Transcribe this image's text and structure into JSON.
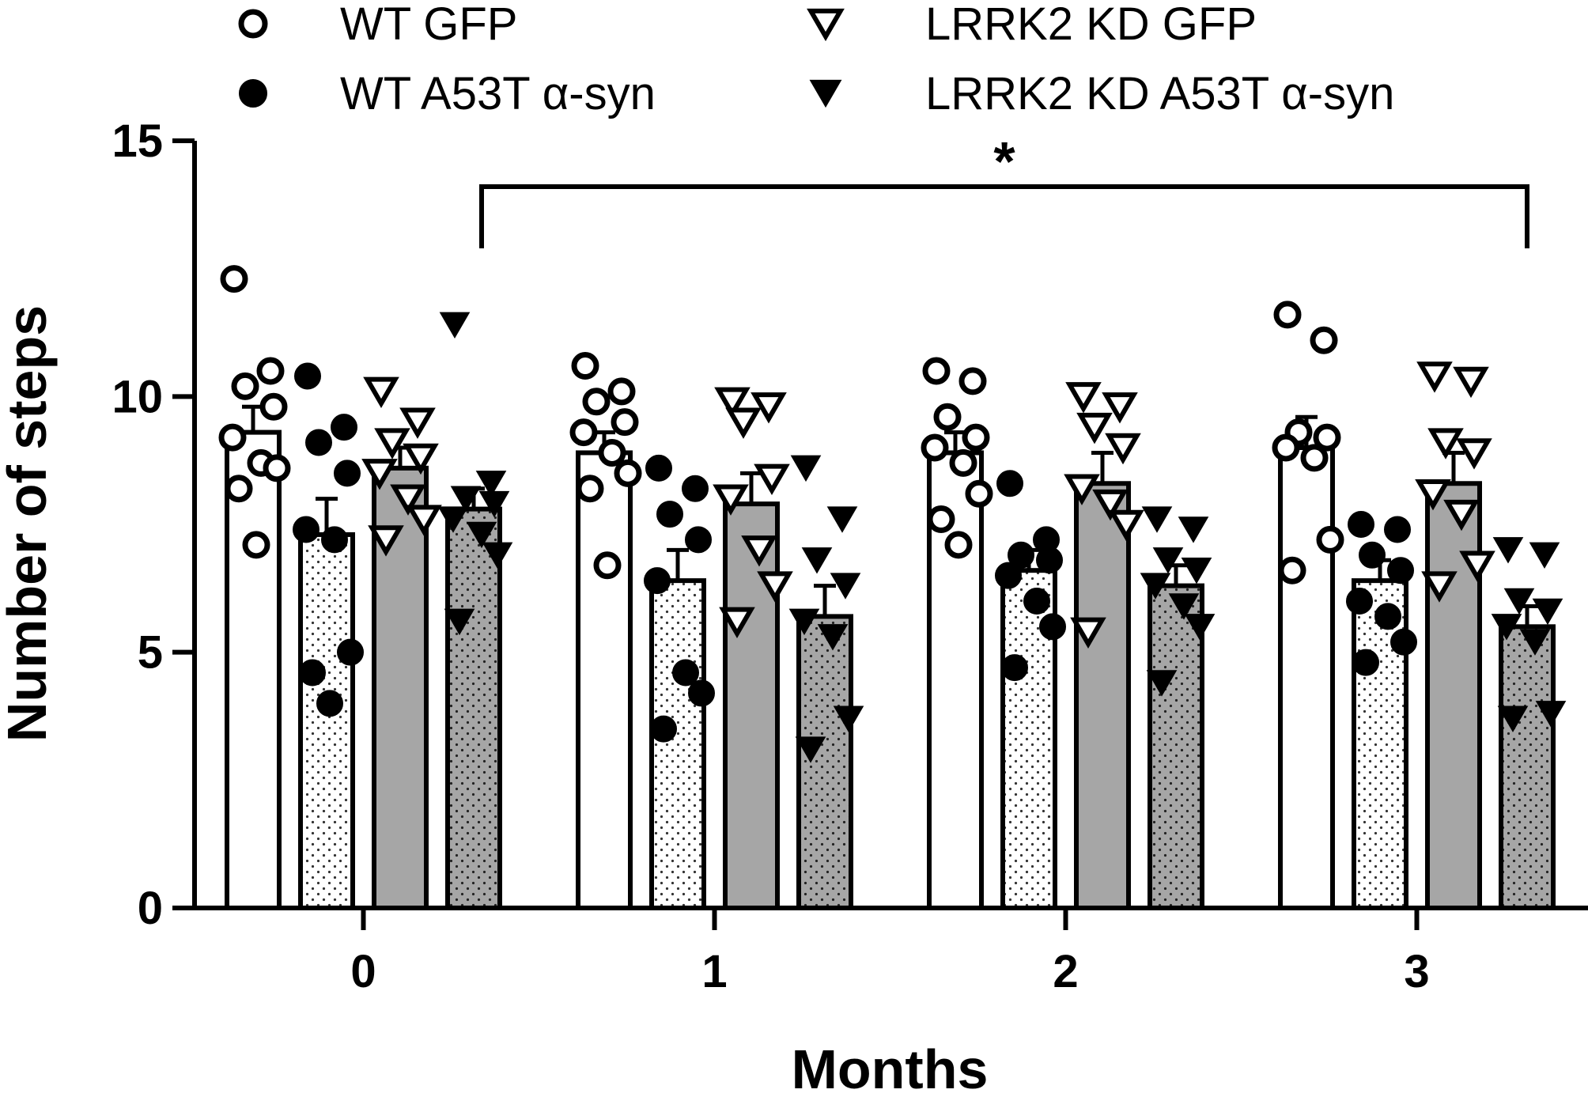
{
  "chart_data": {
    "type": "bar",
    "title": "",
    "xlabel": "Months",
    "ylabel": "Number of steps",
    "categories": [
      "0",
      "1",
      "2",
      "3"
    ],
    "ylim": [
      0,
      15
    ],
    "yticks": [
      "0",
      "5",
      "10",
      "15"
    ],
    "legend_position": "top",
    "series": [
      {
        "name": "WT GFP",
        "marker": "open-circle",
        "fill": "white",
        "values": [
          9.3,
          8.9,
          8.9,
          9.0
        ],
        "sem": [
          0.5,
          0.4,
          0.4,
          0.6
        ],
        "points": [
          [
            12.3,
            10.5,
            10.2,
            9.8,
            9.2,
            8.7,
            8.6,
            8.2,
            7.1
          ],
          [
            10.6,
            10.1,
            9.9,
            9.5,
            9.3,
            8.9,
            8.5,
            8.2,
            6.7
          ],
          [
            10.5,
            10.3,
            9.6,
            9.2,
            9.0,
            8.7,
            8.1,
            7.6,
            7.1
          ],
          [
            11.6,
            11.1,
            9.3,
            9.2,
            9.0,
            8.8,
            7.2,
            6.6
          ]
        ]
      },
      {
        "name": "WT A53T α-syn",
        "marker": "filled-circle",
        "fill": "dotted-white",
        "values": [
          7.3,
          6.4,
          6.6,
          6.4
        ],
        "sem": [
          0.7,
          0.6,
          0.4,
          0.4
        ],
        "points": [
          [
            10.4,
            9.4,
            9.1,
            8.5,
            7.4,
            7.2,
            5.0,
            4.6,
            4.0
          ],
          [
            8.6,
            8.2,
            7.7,
            7.2,
            6.4,
            4.6,
            4.2,
            3.5
          ],
          [
            8.3,
            7.2,
            6.9,
            6.8,
            6.5,
            6.0,
            5.5,
            4.7
          ],
          [
            7.5,
            7.4,
            6.9,
            6.6,
            6.0,
            5.7,
            5.2,
            4.8
          ]
        ]
      },
      {
        "name": "LRRK2 KD GFP",
        "marker": "open-triangle-down",
        "fill": "gray",
        "values": [
          8.6,
          7.9,
          8.3,
          8.3
        ],
        "sem": [
          0.4,
          0.6,
          0.6,
          0.6
        ],
        "points": [
          [
            10.1,
            9.5,
            9.1,
            8.8,
            8.5,
            8.0,
            7.6,
            7.2
          ],
          [
            9.9,
            9.8,
            9.5,
            8.4,
            8.0,
            7.0,
            6.3,
            5.6
          ],
          [
            10.0,
            9.8,
            9.4,
            9.0,
            8.2,
            7.9,
            7.5,
            5.4
          ],
          [
            10.4,
            10.3,
            9.1,
            8.9,
            8.1,
            7.7,
            6.7,
            6.3
          ]
        ]
      },
      {
        "name": "LRRK2 KD A53T α-syn",
        "marker": "filled-triangle-down",
        "fill": "dotted-gray",
        "values": [
          7.8,
          5.7,
          6.3,
          5.5
        ],
        "sem": [
          0.4,
          0.6,
          0.4,
          0.4
        ],
        "points": [
          [
            11.4,
            8.3,
            8.0,
            7.9,
            7.6,
            7.3,
            6.9,
            5.6
          ],
          [
            8.6,
            7.6,
            6.8,
            6.3,
            5.6,
            5.3,
            3.7,
            3.1
          ],
          [
            7.6,
            7.4,
            6.8,
            6.6,
            6.3,
            5.9,
            5.5,
            4.4
          ],
          [
            7.0,
            6.9,
            6.0,
            5.8,
            5.5,
            5.2,
            3.8,
            3.7
          ]
        ]
      }
    ],
    "annotations": [
      {
        "text": "*",
        "type": "significance-bracket",
        "from": "month 0 LRRK2 KD A53T α-syn",
        "to": "month 3 LRRK2 KD A53T α-syn"
      }
    ]
  }
}
